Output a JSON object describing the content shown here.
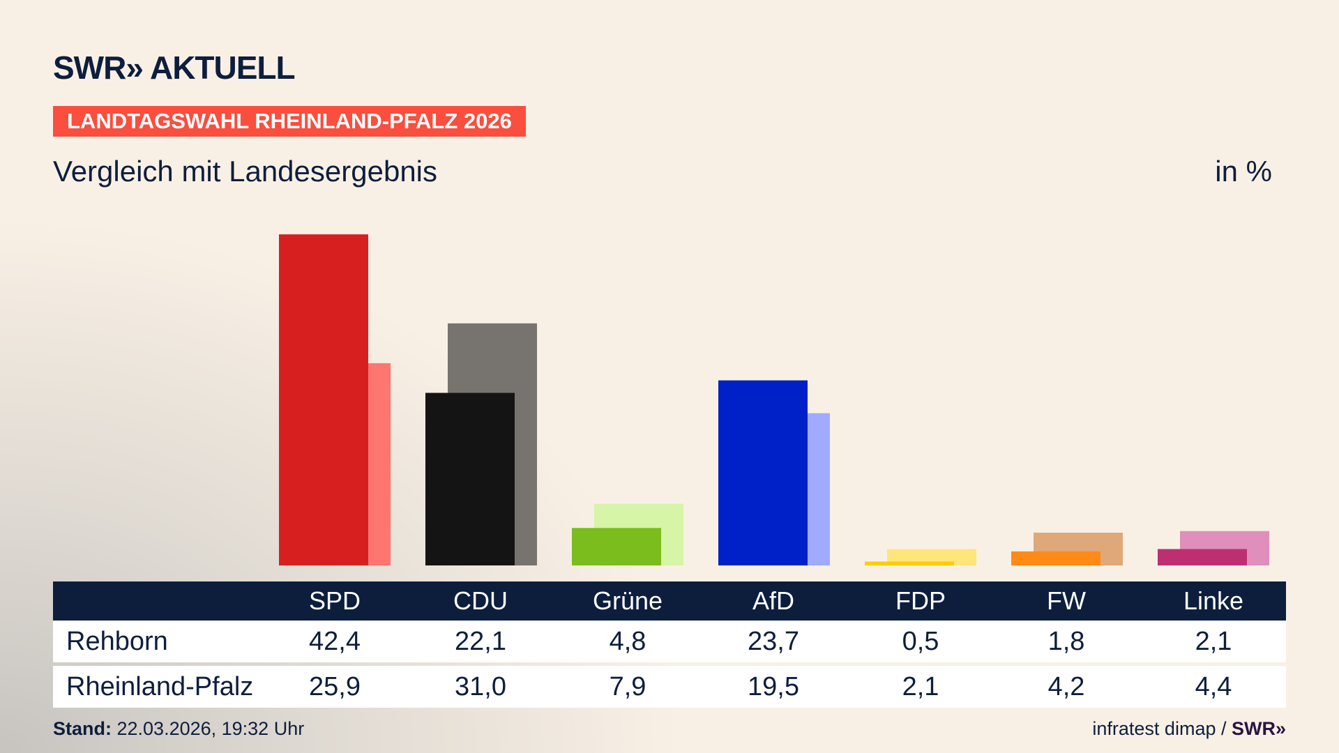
{
  "header": {
    "logo": "SWR» AKTUELL",
    "badge": "LANDTAGSWAHL RHEINLAND-PFALZ 2026",
    "subtitle": "Vergleich mit Landesergebnis",
    "unit": "in %"
  },
  "chart_data": {
    "type": "bar",
    "categories": [
      "SPD",
      "CDU",
      "Grüne",
      "AfD",
      "FDP",
      "FW",
      "Linke"
    ],
    "series": [
      {
        "name": "Rehborn",
        "values": [
          42.4,
          22.1,
          4.8,
          23.7,
          0.5,
          1.8,
          2.1
        ]
      },
      {
        "name": "Rheinland-Pfalz",
        "values": [
          25.9,
          31.0,
          7.9,
          19.5,
          2.1,
          4.2,
          4.4
        ]
      }
    ],
    "colors_primary": [
      "#d71f1f",
      "#141414",
      "#7abd1c",
      "#0021c8",
      "#ffcc00",
      "#ff8a15",
      "#be2f72"
    ],
    "colors_secondary": [
      "#ff7570",
      "#777470",
      "#d6f5a6",
      "#a0abff",
      "#ffe57a",
      "#dfa878",
      "#e08ebb"
    ],
    "ylim": [
      0,
      45
    ],
    "grid": false
  },
  "table": {
    "headers": [
      "SPD",
      "CDU",
      "Grüne",
      "AfD",
      "FDP",
      "FW",
      "Linke"
    ],
    "rows": [
      {
        "label": "Rehborn",
        "values": [
          "42,4",
          "22,1",
          "4,8",
          "23,7",
          "0,5",
          "1,8",
          "2,1"
        ]
      },
      {
        "label": "Rheinland-Pfalz",
        "values": [
          "25,9",
          "31,0",
          "7,9",
          "19,5",
          "2,1",
          "4,2",
          "4,4"
        ]
      }
    ]
  },
  "footer": {
    "stand_label": "Stand:",
    "stand_value": " 22.03.2026, 19:32 Uhr",
    "source": "infratest dimap / ",
    "source_logo": "SWR»"
  }
}
